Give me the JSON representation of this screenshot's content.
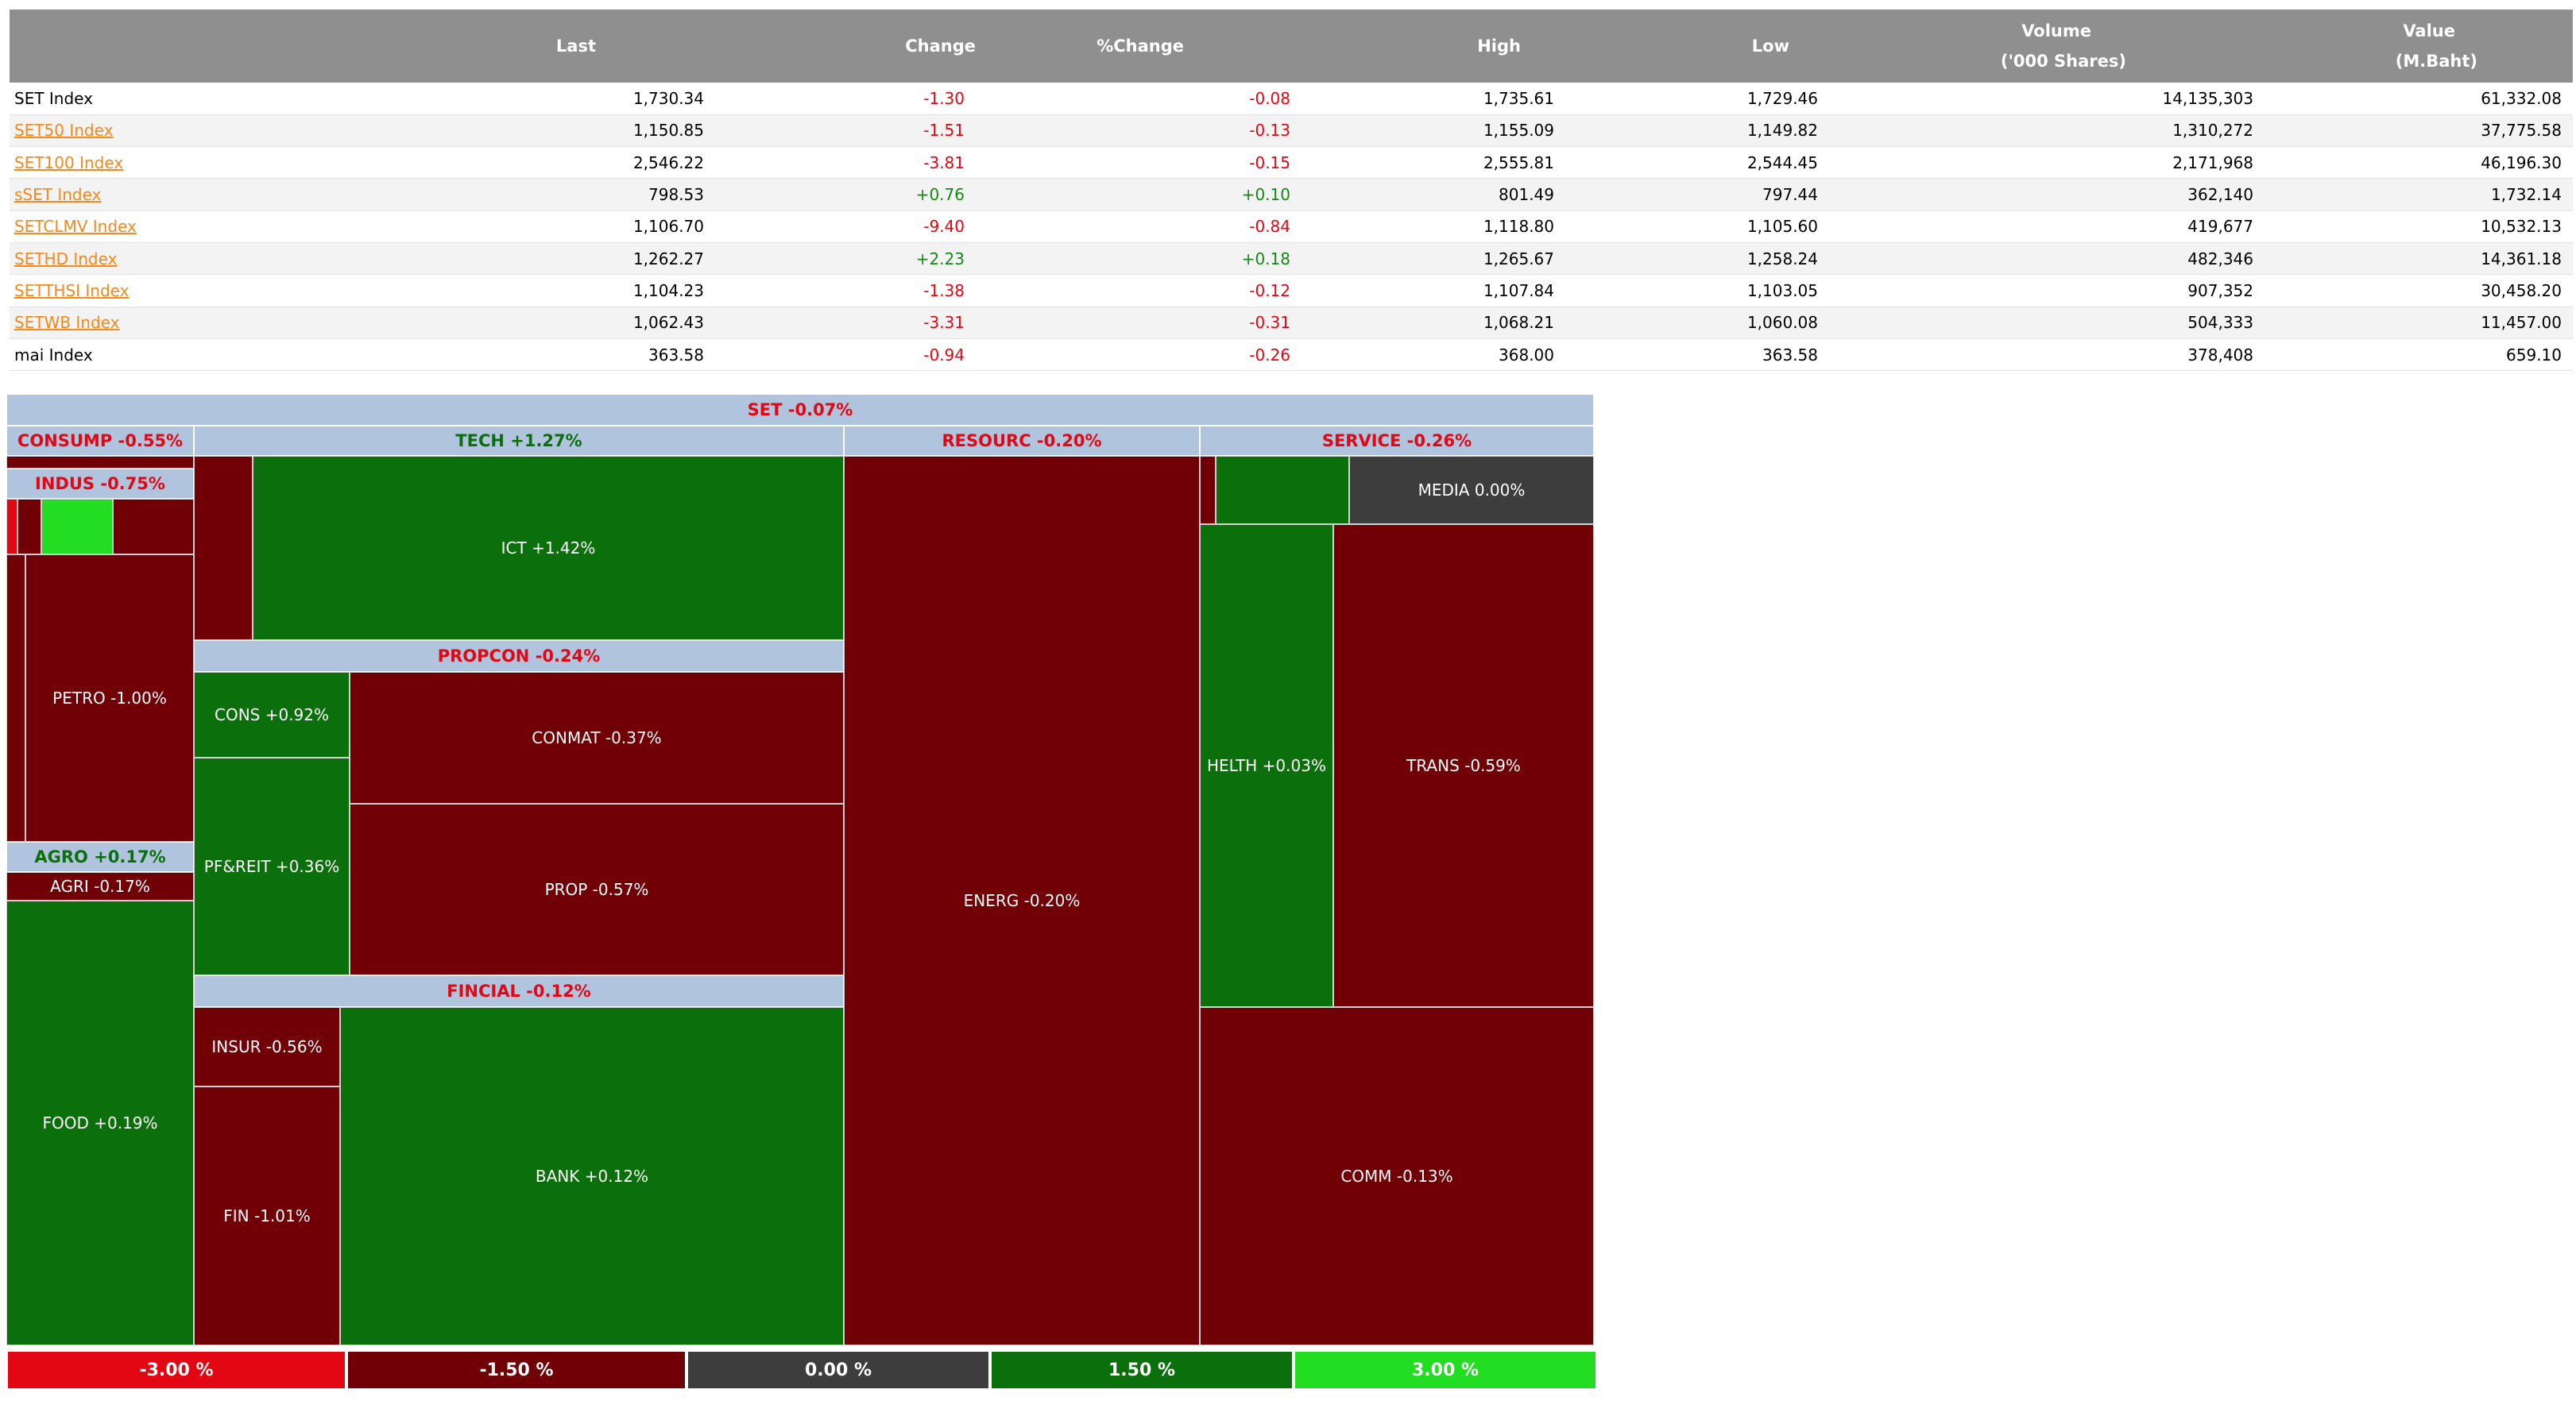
{
  "table": {
    "headers": {
      "name": "",
      "last": "Last",
      "change": "Change",
      "pct_change": "%Change",
      "high": "High",
      "low": "Low",
      "volume": "Volume",
      "volume_unit": "('000 Shares)",
      "value": "Value",
      "value_unit": "(M.Baht)"
    },
    "rows": [
      {
        "name": "SET Index",
        "link": false,
        "last": "1,730.34",
        "change": "-1.30",
        "pct_change": "-0.08",
        "high": "1,735.61",
        "low": "1,729.46",
        "volume": "14,135,303",
        "value": "61,332.08",
        "dir": "neg"
      },
      {
        "name": "SET50 Index",
        "link": true,
        "last": "1,150.85",
        "change": "-1.51",
        "pct_change": "-0.13",
        "high": "1,155.09",
        "low": "1,149.82",
        "volume": "1,310,272",
        "value": "37,775.58",
        "dir": "neg"
      },
      {
        "name": "SET100 Index",
        "link": true,
        "last": "2,546.22",
        "change": "-3.81",
        "pct_change": "-0.15",
        "high": "2,555.81",
        "low": "2,544.45",
        "volume": "2,171,968",
        "value": "46,196.30",
        "dir": "neg"
      },
      {
        "name": "sSET Index",
        "link": true,
        "last": "798.53",
        "change": "+0.76",
        "pct_change": "+0.10",
        "high": "801.49",
        "low": "797.44",
        "volume": "362,140",
        "value": "1,732.14",
        "dir": "pos"
      },
      {
        "name": "SETCLMV Index",
        "link": true,
        "last": "1,106.70",
        "change": "-9.40",
        "pct_change": "-0.84",
        "high": "1,118.80",
        "low": "1,105.60",
        "volume": "419,677",
        "value": "10,532.13",
        "dir": "neg"
      },
      {
        "name": "SETHD Index",
        "link": true,
        "last": "1,262.27",
        "change": "+2.23",
        "pct_change": "+0.18",
        "high": "1,265.67",
        "low": "1,258.24",
        "volume": "482,346",
        "value": "14,361.18",
        "dir": "pos"
      },
      {
        "name": "SETTHSI Index",
        "link": true,
        "last": "1,104.23",
        "change": "-1.38",
        "pct_change": "-0.12",
        "high": "1,107.84",
        "low": "1,103.05",
        "volume": "907,352",
        "value": "30,458.20",
        "dir": "neg"
      },
      {
        "name": "SETWB Index",
        "link": true,
        "last": "1,062.43",
        "change": "-3.31",
        "pct_change": "-0.31",
        "high": "1,068.21",
        "low": "1,060.08",
        "volume": "504,333",
        "value": "11,457.00",
        "dir": "neg"
      },
      {
        "name": "mai Index",
        "link": false,
        "last": "363.58",
        "change": "-0.94",
        "pct_change": "-0.26",
        "high": "368.00",
        "low": "363.58",
        "volume": "378,408",
        "value": "659.10",
        "dir": "neg"
      }
    ]
  },
  "heatmap": {
    "title": "SET -0.07%",
    "groups": {
      "consump": "CONSUMP -0.55%",
      "indus": "INDUS -0.75%",
      "agro": "AGRO +0.17%",
      "tech": "TECH +1.27%",
      "propcon": "PROPCON -0.24%",
      "fincial": "FINCIAL -0.12%",
      "resourc": "RESOURC -0.20%",
      "service": "SERVICE -0.26%"
    },
    "sectors": {
      "petro": "PETRO -1.00%",
      "agri": "AGRI -0.17%",
      "food": "FOOD +0.19%",
      "ict": "ICT +1.42%",
      "cons": "CONS +0.92%",
      "conmat": "CONMAT -0.37%",
      "pfreit": "PF&REIT +0.36%",
      "prop": "PROP -0.57%",
      "insur": "INSUR -0.56%",
      "fin": "FIN -1.01%",
      "bank": "BANK +0.12%",
      "energ": "ENERG -0.20%",
      "media": "MEDIA 0.00%",
      "helth": "HELTH +0.03%",
      "trans": "TRANS -0.59%",
      "comm": "COMM -0.13%"
    },
    "colors": {
      "strong_negative": "#e30613",
      "negative": "#700005",
      "neutral": "#3d3d3d",
      "positive": "#0b6f0b",
      "strong_positive": "#22dd22",
      "header": "#b0c4de"
    }
  },
  "legend": [
    "-3.00 %",
    "-1.50 %",
    "0.00 %",
    "1.50 %",
    "3.00 %"
  ]
}
